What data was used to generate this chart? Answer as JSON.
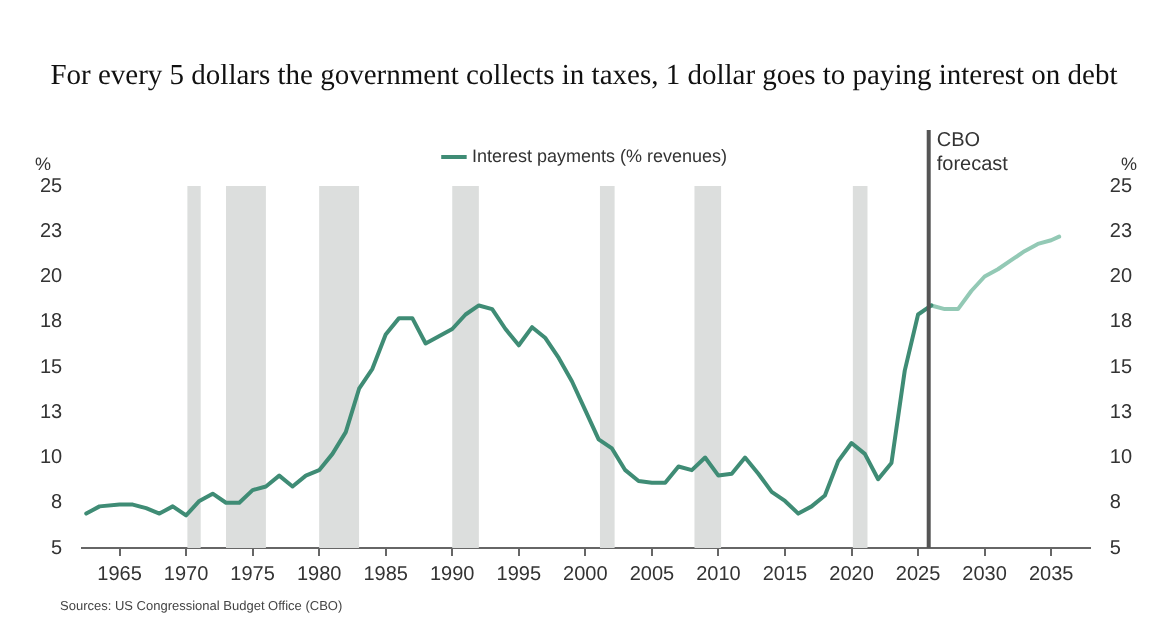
{
  "chart_data": {
    "type": "line",
    "title": "For every 5 dollars the government collects in taxes, 1 dollar goes to paying interest on debt",
    "ylabel": "%",
    "y2label": "%",
    "series": [
      {
        "name": "Interest payments (% revenues)",
        "color": "#3f8c75",
        "x": [
          1962.5,
          1963.5,
          1965,
          1966,
          1967,
          1968,
          1969,
          1970,
          1971,
          1972,
          1973,
          1974,
          1975,
          1976,
          1977,
          1978,
          1979,
          1980,
          1981,
          1982,
          1983,
          1984,
          1985,
          1986,
          1987,
          1988,
          1989,
          1990,
          1991,
          1992,
          1993,
          1994,
          1995,
          1996,
          1997,
          1998,
          1999,
          2000,
          2001,
          2002,
          2003,
          2004,
          2005,
          2006,
          2007,
          2008,
          2009,
          2010,
          2011,
          2012,
          2013,
          2014,
          2015,
          2016,
          2017,
          2018,
          2019,
          2020,
          2021,
          2022,
          2023,
          2024,
          2025,
          2026
        ],
        "values": [
          6.9,
          7.3,
          7.4,
          7.4,
          7.2,
          6.9,
          7.3,
          6.8,
          7.6,
          8.0,
          7.5,
          7.5,
          8.2,
          8.4,
          9.0,
          8.4,
          9.0,
          9.3,
          10.2,
          11.4,
          13.8,
          14.9,
          16.8,
          17.7,
          17.7,
          16.3,
          16.7,
          17.1,
          17.9,
          18.4,
          18.2,
          17.1,
          16.2,
          17.2,
          16.6,
          15.5,
          14.2,
          12.6,
          11.0,
          10.5,
          9.3,
          8.7,
          8.6,
          8.6,
          9.5,
          9.3,
          10.0,
          9.0,
          9.1,
          10.0,
          9.1,
          8.1,
          7.6,
          6.9,
          7.3,
          7.9,
          9.8,
          10.8,
          10.2,
          8.8,
          9.7,
          14.8,
          17.9,
          18.4
        ]
      },
      {
        "color": "#93c9b5",
        "x": [
          2026,
          2027,
          2028,
          2029,
          2030,
          2031,
          2032,
          2033,
          2034,
          2035,
          2035.6
        ],
        "values": [
          18.4,
          18.2,
          18.2,
          19.2,
          20.0,
          20.4,
          20.9,
          21.4,
          21.8,
          22.0,
          22.2
        ]
      }
    ],
    "xlim": [
      1962.2,
      2037.9
    ],
    "xticks": [
      1965,
      1970,
      1975,
      1980,
      1985,
      1990,
      1995,
      2000,
      2005,
      2010,
      2015,
      2020,
      2025,
      2030,
      2035
    ],
    "ylim": [
      5,
      25
    ],
    "yticks": [
      5,
      {
        "value": 7.5,
        "label": "8"
      },
      10,
      {
        "value": 12.5,
        "label": "13"
      },
      15,
      {
        "value": 17.5,
        "label": "18"
      },
      20,
      {
        "value": 22.5,
        "label": "23"
      },
      25
    ],
    "y2lim": [
      5,
      25
    ],
    "y2ticks": [
      5,
      {
        "value": 7.5,
        "label": "8"
      },
      10,
      {
        "value": 12.5,
        "label": "13"
      },
      15,
      {
        "value": 17.5,
        "label": "18"
      },
      20,
      {
        "value": 22.5,
        "label": "23"
      },
      25
    ],
    "bands": [
      {
        "axis": "x",
        "from": 1970.1,
        "to": 1971.1,
        "color": "#dcdedd"
      },
      {
        "axis": "x",
        "from": 1973.0,
        "to": 1976.0,
        "color": "#dcdedd"
      },
      {
        "axis": "x",
        "from": 1980.0,
        "to": 1983.0,
        "color": "#dcdedd"
      },
      {
        "axis": "x",
        "from": 1990.0,
        "to": 1992.0,
        "color": "#dcdedd"
      },
      {
        "axis": "x",
        "from": 2001.1,
        "to": 2002.2,
        "color": "#dcdedd"
      },
      {
        "axis": "x",
        "from": 2008.2,
        "to": 2010.2,
        "color": "#dcdedd"
      },
      {
        "axis": "x",
        "from": 2020.1,
        "to": 2021.2,
        "color": "#dcdedd"
      }
    ],
    "ref_lines": [
      {
        "axis": "x",
        "value": 2025.8,
        "label": "CBO forecast",
        "color": "#555555"
      }
    ],
    "annotations": [
      "Sources: US Congressional Budget Office (CBO)"
    ],
    "legend": "top",
    "grid": false,
    "marker": "none",
    "line_style": "solid"
  }
}
